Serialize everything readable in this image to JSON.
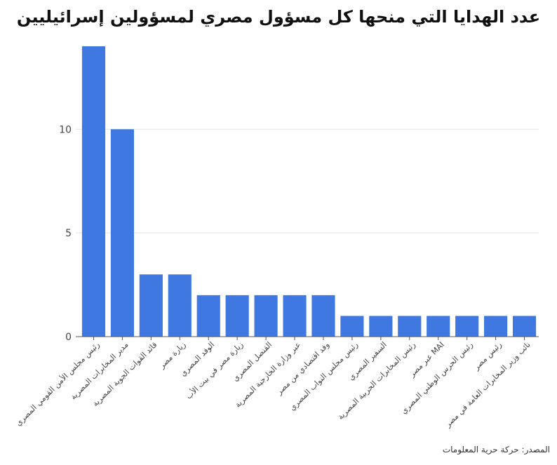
{
  "chart_data": {
    "type": "bar",
    "title": "عدد الهدايا التي منحها كل مسؤول مصري لمسؤولين إسرائيليين",
    "source": "المصدر: حركة حرية المعلومات",
    "categories": [
      "رئيس مجلس الأمن القومي المصري",
      "مدير المخابرات المصرية",
      "قائد القوات الجوية المصرية",
      "زيارة مصر",
      "الوفد المصري",
      "زيارة مصر في بيت الأب",
      "القنصل المصري",
      "عبر وزارة الخارجية المصرية",
      "وفد اقتصادي من مصر",
      "رئيس مجلس النواب المصري",
      "السفير المصري",
      "رئيس المخابرات الحربية المصرية",
      "عبر مصر MAI",
      "رئيس الحرس الوطني المصري",
      "رئيس مصر",
      "نائب وزير المخابرات العامة في مصر"
    ],
    "values": [
      14,
      10,
      3,
      3,
      2,
      2,
      2,
      2,
      2,
      1,
      1,
      1,
      1,
      1,
      1,
      1
    ],
    "yticks": [
      0,
      5,
      10
    ],
    "ylim": [
      0,
      14
    ],
    "grid": true,
    "colors": {
      "bar": "#3f78e0",
      "grid": "#e3e3e3",
      "axis": "#555555"
    }
  }
}
